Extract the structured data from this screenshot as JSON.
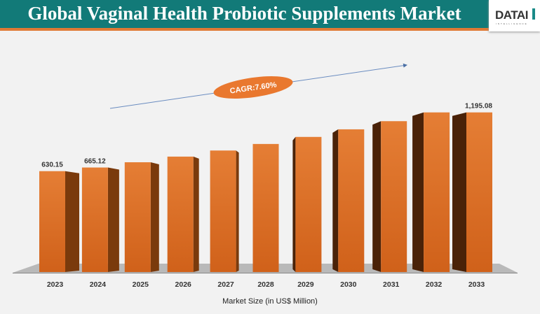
{
  "header": {
    "title": "Global Vaginal Health Probiotic Supplements Market",
    "logo_text": "DATAI",
    "logo_subtext": "INTELLIGENCE"
  },
  "colors": {
    "header_bg": "#127a78",
    "accent": "#e07a35",
    "bar_front": "#d0611a",
    "bar_side": "#4a2208",
    "floor": "#b9b9b9"
  },
  "chart_data": {
    "type": "bar",
    "title": "Global Vaginal Health Probiotic Supplements Market",
    "xlabel": "Market Size (in US$ Million)",
    "ylabel": "",
    "categories": [
      "2023",
      "2024",
      "2025",
      "2026",
      "2027",
      "2028",
      "2029",
      "2030",
      "2031",
      "2032",
      "2033"
    ],
    "values": [
      630.15,
      665.12,
      715.7,
      770.1,
      828.6,
      891.6,
      959.4,
      1032.3,
      1110.8,
      1195.1,
      1195.08
    ],
    "data_labels": {
      "0": "630.15",
      "1": "665.12",
      "10": "1,195.08"
    },
    "annotation": "CAGR:7.60%",
    "grid": false,
    "legend": "none",
    "style": "3d-bar"
  }
}
